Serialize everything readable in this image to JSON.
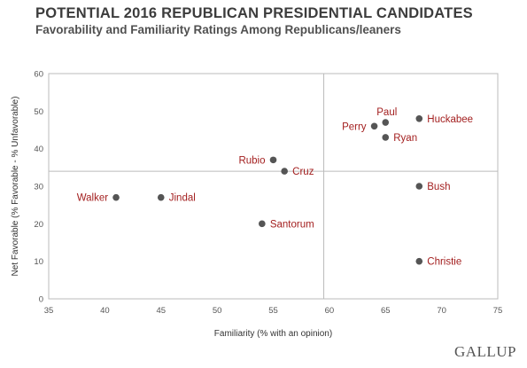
{
  "header": {
    "title": "POTENTIAL 2016 REPUBLICAN PRESIDENTIAL CANDIDATES",
    "subtitle": "Favorability and Familiarity Ratings Among Republicans/leaners"
  },
  "brand": "GALLUP",
  "colors": {
    "point": "#555555",
    "label": "#a31f1f",
    "axis": "#bbbbbb"
  },
  "chart_data": {
    "type": "scatter",
    "xlabel": "Familiarity (% with an opinion)",
    "ylabel": "Net Favorable (% Favorable - % Unfavorable)",
    "xlim": [
      35,
      75
    ],
    "ylim": [
      0,
      60
    ],
    "xticks": [
      35,
      40,
      45,
      50,
      55,
      60,
      65,
      70,
      75
    ],
    "yticks": [
      0,
      10,
      20,
      30,
      40,
      50,
      60
    ],
    "grid": false,
    "reference_lines": {
      "x": 59.5,
      "y": 34
    },
    "points": [
      {
        "name": "Walker",
        "x": 41,
        "y": 27,
        "label_side": "left"
      },
      {
        "name": "Jindal",
        "x": 45,
        "y": 27,
        "label_side": "right"
      },
      {
        "name": "Santorum",
        "x": 54,
        "y": 20,
        "label_side": "right"
      },
      {
        "name": "Rubio",
        "x": 55,
        "y": 37,
        "label_side": "left"
      },
      {
        "name": "Cruz",
        "x": 56,
        "y": 34,
        "label_side": "right"
      },
      {
        "name": "Perry",
        "x": 64,
        "y": 46,
        "label_side": "left"
      },
      {
        "name": "Paul",
        "x": 65,
        "y": 47,
        "label_side": "above"
      },
      {
        "name": "Ryan",
        "x": 65,
        "y": 43,
        "label_side": "right"
      },
      {
        "name": "Huckabee",
        "x": 68,
        "y": 48,
        "label_side": "right"
      },
      {
        "name": "Bush",
        "x": 68,
        "y": 30,
        "label_side": "right"
      },
      {
        "name": "Christie",
        "x": 68,
        "y": 10,
        "label_side": "right"
      }
    ]
  }
}
